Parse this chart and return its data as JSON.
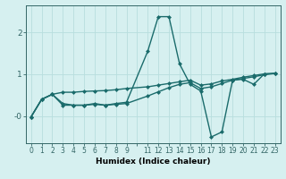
{
  "xlabel": "Humidex (Indice chaleur)",
  "background_color": "#d6f0f0",
  "grid_color": "#b8dede",
  "line_color": "#1a6b6b",
  "xlim": [
    -0.5,
    23.5
  ],
  "ylim": [
    -0.65,
    2.65
  ],
  "x_values": [
    0,
    1,
    2,
    3,
    4,
    5,
    6,
    7,
    8,
    9,
    11,
    12,
    13,
    14,
    15,
    16,
    17,
    18,
    19,
    20,
    21,
    22,
    23
  ],
  "line1": [
    -0.02,
    0.4,
    0.52,
    0.57,
    0.57,
    0.59,
    0.6,
    0.61,
    0.63,
    0.66,
    0.7,
    0.74,
    0.78,
    0.82,
    0.86,
    0.74,
    0.77,
    0.84,
    0.88,
    0.93,
    0.97,
    1.01,
    1.02
  ],
  "line2": [
    -0.02,
    0.4,
    0.52,
    0.3,
    0.26,
    0.26,
    0.3,
    0.26,
    0.3,
    0.33,
    1.55,
    2.38,
    2.38,
    1.25,
    0.76,
    0.6,
    -0.5,
    -0.38,
    0.86,
    0.88,
    0.76,
    1.01,
    1.02
  ],
  "line3": [
    -0.02,
    0.4,
    0.52,
    0.26,
    0.26,
    0.26,
    0.28,
    0.26,
    0.28,
    0.3,
    0.48,
    0.58,
    0.68,
    0.76,
    0.8,
    0.66,
    0.7,
    0.78,
    0.86,
    0.9,
    0.94,
    0.99,
    1.02
  ],
  "marker_size": 2.5,
  "line_width": 1.0,
  "xlabel_fontsize": 6.5,
  "tick_fontsize": 5.5,
  "ytick_fontsize": 6.5
}
